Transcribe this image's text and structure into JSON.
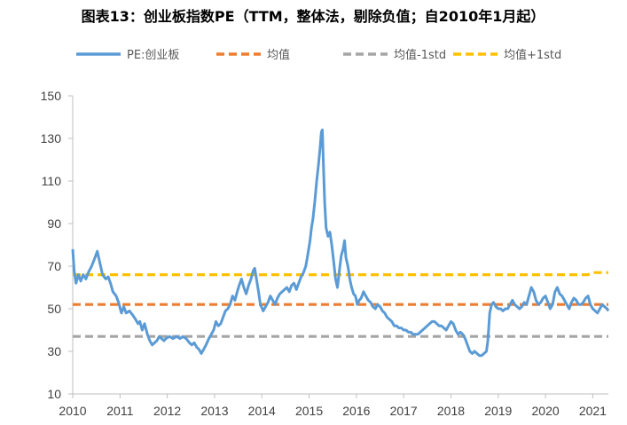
{
  "chart_data": {
    "type": "line",
    "title": "图表13：创业板指数PE（TTM，整体法，剔除负值；自2010年1月起）",
    "xlabel": "",
    "ylabel": "",
    "ylim": [
      10,
      150
    ],
    "yticks": [
      10,
      30,
      50,
      70,
      90,
      110,
      130,
      150
    ],
    "xticks": [
      "2010",
      "2011",
      "2012",
      "2013",
      "2014",
      "2015",
      "2016",
      "2017",
      "2018",
      "2019",
      "2020",
      "2021"
    ],
    "xlim": [
      2010.0,
      2021.33
    ],
    "grid": false,
    "legend_position": "top",
    "series": [
      {
        "name": "PE:创业板",
        "color": "#5B9BD5",
        "style": "solid",
        "points": [
          [
            2010.0,
            78
          ],
          [
            2010.03,
            68
          ],
          [
            2010.07,
            62
          ],
          [
            2010.12,
            66
          ],
          [
            2010.17,
            63
          ],
          [
            2010.22,
            66
          ],
          [
            2010.28,
            64
          ],
          [
            2010.33,
            67
          ],
          [
            2010.4,
            70
          ],
          [
            2010.47,
            74
          ],
          [
            2010.52,
            77
          ],
          [
            2010.57,
            72
          ],
          [
            2010.63,
            66
          ],
          [
            2010.7,
            64
          ],
          [
            2010.75,
            65
          ],
          [
            2010.8,
            62
          ],
          [
            2010.85,
            58
          ],
          [
            2010.92,
            56
          ],
          [
            2010.97,
            53
          ],
          [
            2011.03,
            48
          ],
          [
            2011.08,
            51
          ],
          [
            2011.13,
            48
          ],
          [
            2011.2,
            49
          ],
          [
            2011.27,
            47
          ],
          [
            2011.33,
            45
          ],
          [
            2011.38,
            43
          ],
          [
            2011.42,
            44
          ],
          [
            2011.47,
            40
          ],
          [
            2011.52,
            43
          ],
          [
            2011.58,
            38
          ],
          [
            2011.63,
            35
          ],
          [
            2011.68,
            33
          ],
          [
            2011.73,
            34
          ],
          [
            2011.78,
            35
          ],
          [
            2011.83,
            37
          ],
          [
            2011.88,
            36
          ],
          [
            2011.93,
            35
          ],
          [
            2011.97,
            36
          ],
          [
            2012.05,
            37
          ],
          [
            2012.12,
            36
          ],
          [
            2012.2,
            37
          ],
          [
            2012.27,
            36
          ],
          [
            2012.33,
            37
          ],
          [
            2012.4,
            36
          ],
          [
            2012.47,
            34
          ],
          [
            2012.52,
            33
          ],
          [
            2012.57,
            34
          ],
          [
            2012.62,
            32
          ],
          [
            2012.67,
            31
          ],
          [
            2012.72,
            29
          ],
          [
            2012.77,
            31
          ],
          [
            2012.82,
            33
          ],
          [
            2012.88,
            36
          ],
          [
            2012.93,
            38
          ],
          [
            2012.98,
            40
          ],
          [
            2013.03,
            44
          ],
          [
            2013.08,
            42
          ],
          [
            2013.13,
            43
          ],
          [
            2013.18,
            46
          ],
          [
            2013.23,
            49
          ],
          [
            2013.28,
            50
          ],
          [
            2013.33,
            52
          ],
          [
            2013.38,
            56
          ],
          [
            2013.43,
            54
          ],
          [
            2013.48,
            58
          ],
          [
            2013.52,
            61
          ],
          [
            2013.57,
            64
          ],
          [
            2013.62,
            60
          ],
          [
            2013.67,
            57
          ],
          [
            2013.72,
            61
          ],
          [
            2013.77,
            64
          ],
          [
            2013.82,
            68
          ],
          [
            2013.85,
            69
          ],
          [
            2013.88,
            65
          ],
          [
            2013.93,
            58
          ],
          [
            2013.97,
            52
          ],
          [
            2014.03,
            49
          ],
          [
            2014.08,
            51
          ],
          [
            2014.13,
            53
          ],
          [
            2014.18,
            56
          ],
          [
            2014.23,
            54
          ],
          [
            2014.28,
            52
          ],
          [
            2014.33,
            55
          ],
          [
            2014.38,
            57
          ],
          [
            2014.43,
            58
          ],
          [
            2014.48,
            59
          ],
          [
            2014.53,
            60
          ],
          [
            2014.58,
            58
          ],
          [
            2014.63,
            61
          ],
          [
            2014.68,
            62
          ],
          [
            2014.73,
            59
          ],
          [
            2014.78,
            62
          ],
          [
            2014.83,
            65
          ],
          [
            2014.88,
            67
          ],
          [
            2014.93,
            70
          ],
          [
            2014.97,
            75
          ],
          [
            2015.02,
            82
          ],
          [
            2015.05,
            88
          ],
          [
            2015.08,
            92
          ],
          [
            2015.12,
            100
          ],
          [
            2015.16,
            110
          ],
          [
            2015.2,
            118
          ],
          [
            2015.23,
            125
          ],
          [
            2015.26,
            133
          ],
          [
            2015.28,
            134
          ],
          [
            2015.3,
            120
          ],
          [
            2015.33,
            100
          ],
          [
            2015.36,
            88
          ],
          [
            2015.4,
            84
          ],
          [
            2015.44,
            86
          ],
          [
            2015.48,
            80
          ],
          [
            2015.52,
            72
          ],
          [
            2015.56,
            64
          ],
          [
            2015.6,
            60
          ],
          [
            2015.64,
            68
          ],
          [
            2015.68,
            75
          ],
          [
            2015.72,
            78
          ],
          [
            2015.75,
            82
          ],
          [
            2015.78,
            74
          ],
          [
            2015.82,
            70
          ],
          [
            2015.86,
            64
          ],
          [
            2015.9,
            60
          ],
          [
            2015.94,
            57
          ],
          [
            2015.98,
            56
          ],
          [
            2016.02,
            52
          ],
          [
            2016.06,
            54
          ],
          [
            2016.1,
            55
          ],
          [
            2016.15,
            58
          ],
          [
            2016.2,
            56
          ],
          [
            2016.25,
            54
          ],
          [
            2016.3,
            53
          ],
          [
            2016.35,
            51
          ],
          [
            2016.4,
            50
          ],
          [
            2016.45,
            52
          ],
          [
            2016.5,
            51
          ],
          [
            2016.55,
            49
          ],
          [
            2016.6,
            48
          ],
          [
            2016.65,
            46
          ],
          [
            2016.7,
            45
          ],
          [
            2016.75,
            44
          ],
          [
            2016.8,
            42
          ],
          [
            2016.85,
            42
          ],
          [
            2016.9,
            41
          ],
          [
            2016.95,
            41
          ],
          [
            2017.0,
            40
          ],
          [
            2017.05,
            40
          ],
          [
            2017.1,
            39
          ],
          [
            2017.15,
            39
          ],
          [
            2017.2,
            38
          ],
          [
            2017.25,
            38
          ],
          [
            2017.3,
            38
          ],
          [
            2017.35,
            39
          ],
          [
            2017.4,
            40
          ],
          [
            2017.45,
            41
          ],
          [
            2017.5,
            42
          ],
          [
            2017.55,
            43
          ],
          [
            2017.6,
            44
          ],
          [
            2017.65,
            44
          ],
          [
            2017.7,
            43
          ],
          [
            2017.75,
            42
          ],
          [
            2017.8,
            42
          ],
          [
            2017.85,
            41
          ],
          [
            2017.9,
            40
          ],
          [
            2017.95,
            42
          ],
          [
            2018.0,
            44
          ],
          [
            2018.05,
            43
          ],
          [
            2018.1,
            40
          ],
          [
            2018.15,
            38
          ],
          [
            2018.2,
            39
          ],
          [
            2018.25,
            38
          ],
          [
            2018.3,
            36
          ],
          [
            2018.35,
            33
          ],
          [
            2018.4,
            30
          ],
          [
            2018.45,
            29
          ],
          [
            2018.5,
            30
          ],
          [
            2018.55,
            29
          ],
          [
            2018.6,
            28
          ],
          [
            2018.65,
            28
          ],
          [
            2018.7,
            29
          ],
          [
            2018.75,
            30
          ],
          [
            2018.78,
            35
          ],
          [
            2018.82,
            48
          ],
          [
            2018.86,
            52
          ],
          [
            2018.9,
            53
          ],
          [
            2018.95,
            51
          ],
          [
            2019.0,
            50
          ],
          [
            2019.05,
            50
          ],
          [
            2019.1,
            49
          ],
          [
            2019.15,
            50
          ],
          [
            2019.2,
            50
          ],
          [
            2019.25,
            52
          ],
          [
            2019.3,
            54
          ],
          [
            2019.35,
            52
          ],
          [
            2019.4,
            51
          ],
          [
            2019.45,
            50
          ],
          [
            2019.5,
            51
          ],
          [
            2019.55,
            53
          ],
          [
            2019.6,
            52
          ],
          [
            2019.65,
            56
          ],
          [
            2019.7,
            60
          ],
          [
            2019.75,
            58
          ],
          [
            2019.8,
            54
          ],
          [
            2019.85,
            52
          ],
          [
            2019.9,
            53
          ],
          [
            2019.95,
            55
          ],
          [
            2020.0,
            56
          ],
          [
            2020.05,
            53
          ],
          [
            2020.1,
            50
          ],
          [
            2020.15,
            52
          ],
          [
            2020.2,
            58
          ],
          [
            2020.25,
            60
          ],
          [
            2020.3,
            57
          ],
          [
            2020.35,
            56
          ],
          [
            2020.4,
            54
          ],
          [
            2020.45,
            52
          ],
          [
            2020.5,
            50
          ],
          [
            2020.55,
            53
          ],
          [
            2020.6,
            55
          ],
          [
            2020.65,
            54
          ],
          [
            2020.7,
            52
          ],
          [
            2020.75,
            52
          ],
          [
            2020.8,
            53
          ],
          [
            2020.85,
            55
          ],
          [
            2020.9,
            56
          ],
          [
            2020.95,
            52
          ],
          [
            2021.0,
            50
          ],
          [
            2021.05,
            49
          ],
          [
            2021.1,
            48
          ],
          [
            2021.15,
            50
          ],
          [
            2021.2,
            52
          ],
          [
            2021.25,
            51
          ],
          [
            2021.3,
            50
          ],
          [
            2021.33,
            49
          ]
        ]
      },
      {
        "name": "均值",
        "color": "#ED7D31",
        "style": "dashed",
        "points": [
          [
            2010.0,
            52
          ],
          [
            2021.33,
            52
          ]
        ]
      },
      {
        "name": "均值-1std",
        "color": "#A5A5A5",
        "style": "dashed",
        "points": [
          [
            2010.0,
            37
          ],
          [
            2021.33,
            37
          ]
        ]
      },
      {
        "name": "均值+1std",
        "color": "#FFC000",
        "style": "dashed",
        "points": [
          [
            2010.0,
            66
          ],
          [
            2020.9,
            66
          ],
          [
            2021.0,
            67
          ],
          [
            2021.33,
            67
          ]
        ]
      }
    ]
  }
}
